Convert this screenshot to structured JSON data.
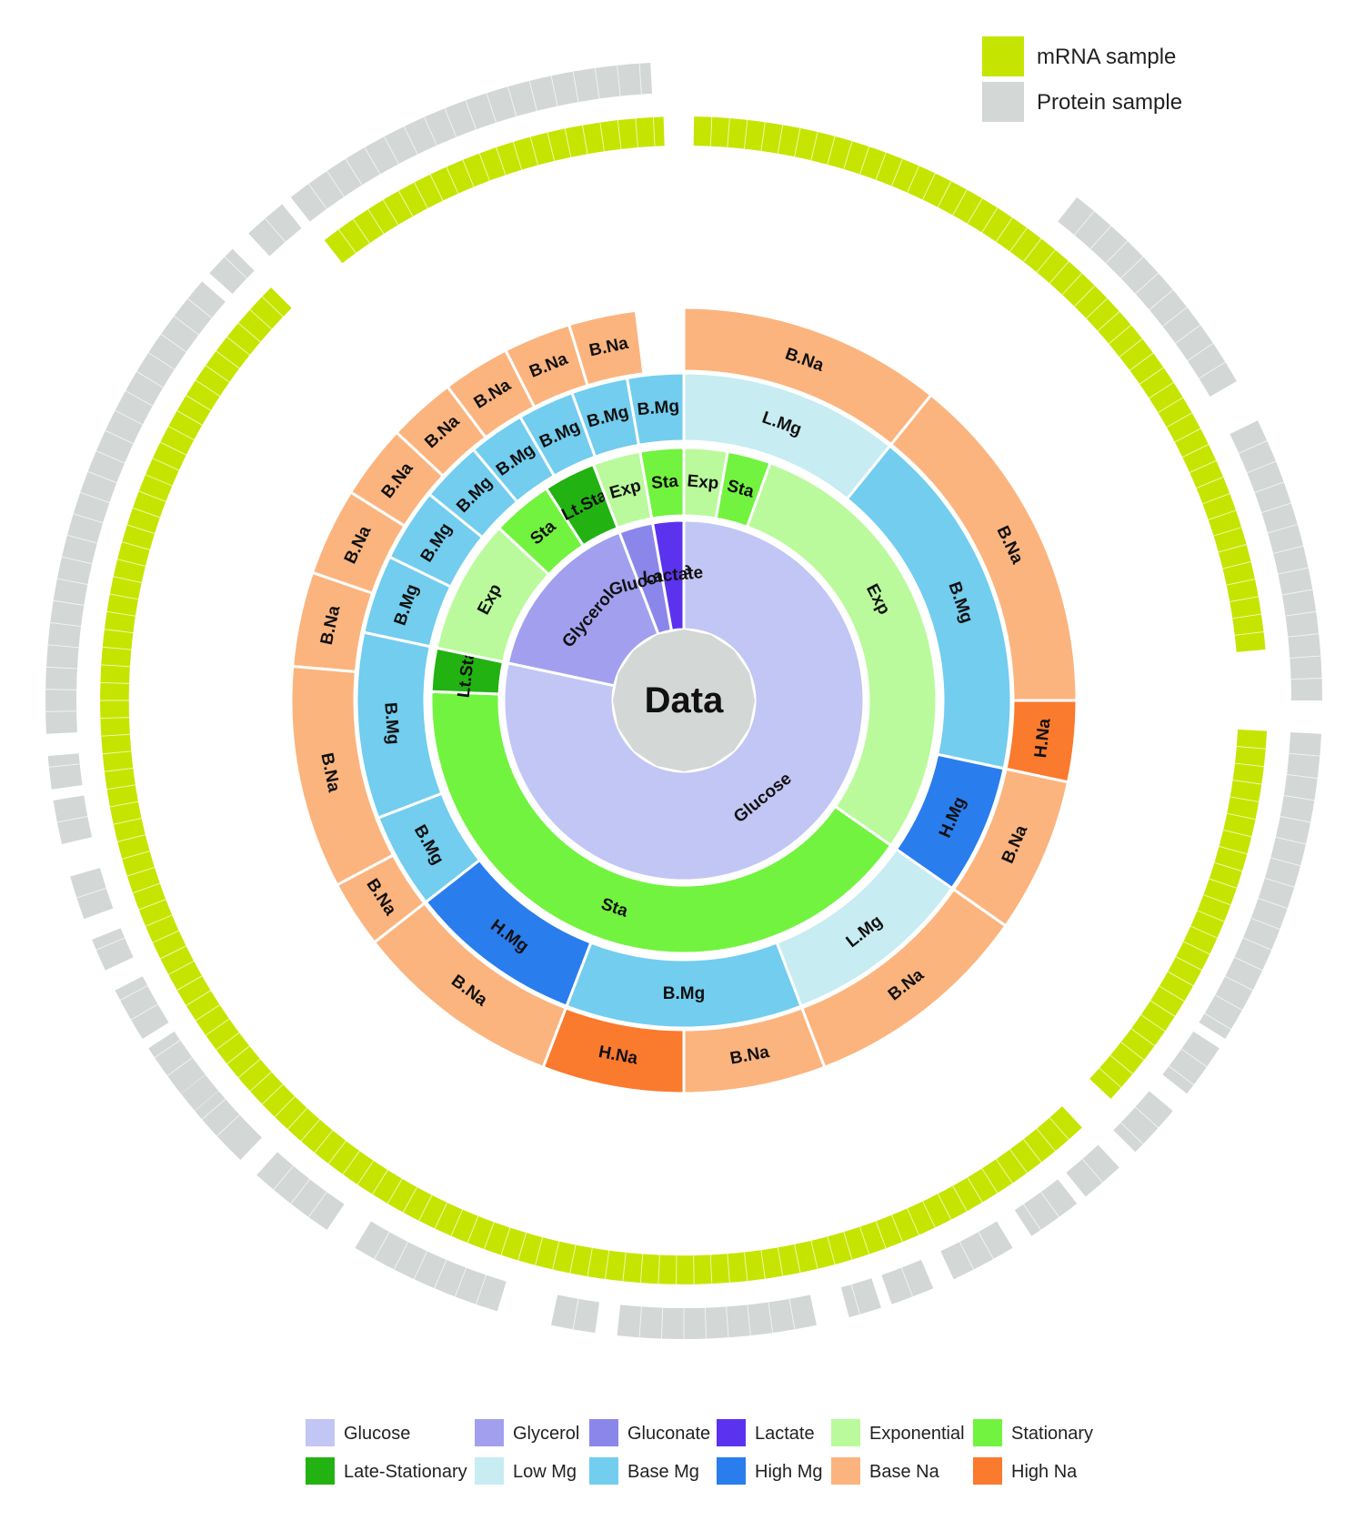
{
  "chart_data": {
    "type": "sunburst",
    "center_label": "Data",
    "rings": {
      "carbon_source": [
        {
          "label": "Glucose",
          "key": "glucose",
          "deg": 282
        },
        {
          "label": "Glycerol",
          "key": "glycerol",
          "deg": 57
        },
        {
          "label": "Gluconate",
          "key": "gluconate",
          "deg": 11
        },
        {
          "label": "Lactate",
          "key": "lactate",
          "deg": 10
        }
      ],
      "growth_phase": [
        {
          "label": "Exp",
          "key": "exponential",
          "deg": 125
        },
        {
          "label": "Sta",
          "key": "stationary",
          "deg": 147
        },
        {
          "label": "Lt.Sta",
          "key": "late_stationary",
          "deg": 10
        },
        {
          "label": "Exp",
          "key": "exponential",
          "deg": 31
        },
        {
          "label": "Sta",
          "key": "stationary",
          "deg": 14
        },
        {
          "label": "Lt.Sta",
          "key": "late_stationary",
          "deg": 12
        },
        {
          "label": "Exp",
          "key": "exponential",
          "deg": 11
        },
        {
          "label": "Sta",
          "key": "stationary",
          "deg": 10
        },
        {
          "label": "Exp",
          "key": "exponential",
          "deg": 10
        },
        {
          "label": "Sta",
          "key": "stationary",
          "deg": 10
        }
      ],
      "magnesium": [
        {
          "label": "L.Mg",
          "key": "low_mg",
          "deg": 39
        },
        {
          "label": "B.Mg",
          "key": "base_mg",
          "deg": 63
        },
        {
          "label": "H.Mg",
          "key": "high_mg",
          "deg": 23
        },
        {
          "label": "L.Mg",
          "key": "low_mg",
          "deg": 34
        },
        {
          "label": "B.Mg",
          "key": "base_mg",
          "deg": 42
        },
        {
          "label": "H.Mg",
          "key": "high_mg",
          "deg": 31
        },
        {
          "label": "B.Mg",
          "key": "base_mg",
          "deg": 17
        },
        {
          "label": "B.Mg",
          "key": "base_mg",
          "deg": 33
        },
        {
          "label": "B.Mg",
          "key": "base_mg",
          "deg": 14
        },
        {
          "label": "B.Mg",
          "key": "base_mg",
          "deg": 13
        },
        {
          "label": "B.Mg",
          "key": "base_mg",
          "deg": 11
        },
        {
          "label": "B.Mg",
          "key": "base_mg",
          "deg": 10
        },
        {
          "label": "B.Mg",
          "key": "base_mg",
          "deg": 10
        },
        {
          "label": "B.Mg",
          "key": "base_mg",
          "deg": 10
        },
        {
          "label": "B.Mg",
          "key": "base_mg",
          "deg": 10
        }
      ],
      "sodium": [
        {
          "label": "B.Na",
          "key": "base_na",
          "deg": 39
        },
        {
          "label": "B.Na",
          "key": "base_na",
          "deg": 51
        },
        {
          "label": "H.Na",
          "key": "high_na",
          "deg": 12
        },
        {
          "label": "B.Na",
          "key": "base_na",
          "deg": 23
        },
        {
          "label": "B.Na",
          "key": "base_na",
          "deg": 34
        },
        {
          "label": "B.Na",
          "key": "base_na",
          "deg": 21
        },
        {
          "label": "H.Na",
          "key": "high_na",
          "deg": 21
        },
        {
          "label": "B.Na",
          "key": "base_na",
          "deg": 31
        },
        {
          "label": "B.Na",
          "key": "base_na",
          "deg": 10
        },
        {
          "label": "B.Na",
          "key": "base_na",
          "deg": 33
        },
        {
          "label": "B.Na",
          "key": "base_na",
          "deg": 14
        },
        {
          "label": "B.Na",
          "key": "base_na",
          "deg": 13
        },
        {
          "label": "B.Na",
          "key": "base_na",
          "deg": 11
        },
        {
          "label": "B.Na",
          "key": "base_na",
          "deg": 10
        },
        {
          "label": "B.Na",
          "key": "base_na",
          "deg": 10
        },
        {
          "label": "B.Na",
          "key": "base_na",
          "deg": 10
        },
        {
          "label": "B.Na",
          "key": "base_na",
          "deg": 10
        }
      ]
    },
    "samples": {
      "mrna_arcs_deg": [
        [
          1,
          85
        ],
        [
          93,
          133
        ],
        [
          137,
          315
        ],
        [
          322,
          358
        ]
      ],
      "protein_arcs_deg": [
        [
          38,
          60
        ],
        [
          64,
          90
        ],
        [
          93,
          122
        ],
        [
          123,
          128
        ],
        [
          130,
          135
        ],
        [
          137,
          141
        ],
        [
          142,
          147
        ],
        [
          149,
          155
        ],
        [
          157,
          161
        ],
        [
          162,
          165
        ],
        [
          168,
          186
        ],
        [
          188,
          192
        ],
        [
          197,
          211
        ],
        [
          214,
          222
        ],
        [
          224,
          233
        ],
        [
          225,
          230
        ],
        [
          232,
          237
        ],
        [
          238,
          243
        ],
        [
          245,
          248
        ],
        [
          250,
          254
        ],
        [
          257,
          261
        ],
        [
          262,
          265
        ],
        [
          267,
          311
        ],
        [
          312,
          315
        ],
        [
          317,
          321
        ],
        [
          322,
          357
        ]
      ]
    }
  },
  "legend_top": [
    {
      "label": "mRNA sample",
      "color": "#c5e500"
    },
    {
      "label": "Protein sample",
      "color": "#d3d7d6"
    }
  ],
  "legend_bottom": [
    {
      "label": "Glucose",
      "key": "glucose"
    },
    {
      "label": "Glycerol",
      "key": "glycerol"
    },
    {
      "label": "Gluconate",
      "key": "gluconate"
    },
    {
      "label": "Lactate",
      "key": "lactate"
    },
    {
      "label": "Exponential",
      "key": "exponential"
    },
    {
      "label": "Stationary",
      "key": "stationary"
    },
    {
      "label": "Late-Stationary",
      "key": "late_stationary"
    },
    {
      "label": "Low Mg",
      "key": "low_mg"
    },
    {
      "label": "Base Mg",
      "key": "base_mg"
    },
    {
      "label": "High Mg",
      "key": "high_mg"
    },
    {
      "label": "Base Na",
      "key": "base_na"
    },
    {
      "label": "High Na",
      "key": "high_na"
    }
  ],
  "colors": {
    "glucose": "#c2c6f4",
    "glycerol": "#a2a0ee",
    "gluconate": "#8b87ea",
    "lactate": "#5b33ee",
    "exponential": "#bafa9c",
    "stationary": "#72f340",
    "late_stationary": "#22b212",
    "low_mg": "#c7ecf2",
    "base_mg": "#72cdee",
    "high_mg": "#2a7ded",
    "base_na": "#fbb47e",
    "high_na": "#fa7a2e",
    "mrna": "#c5e500",
    "protein": "#d3d7d6",
    "center": "#d3d7d6"
  }
}
